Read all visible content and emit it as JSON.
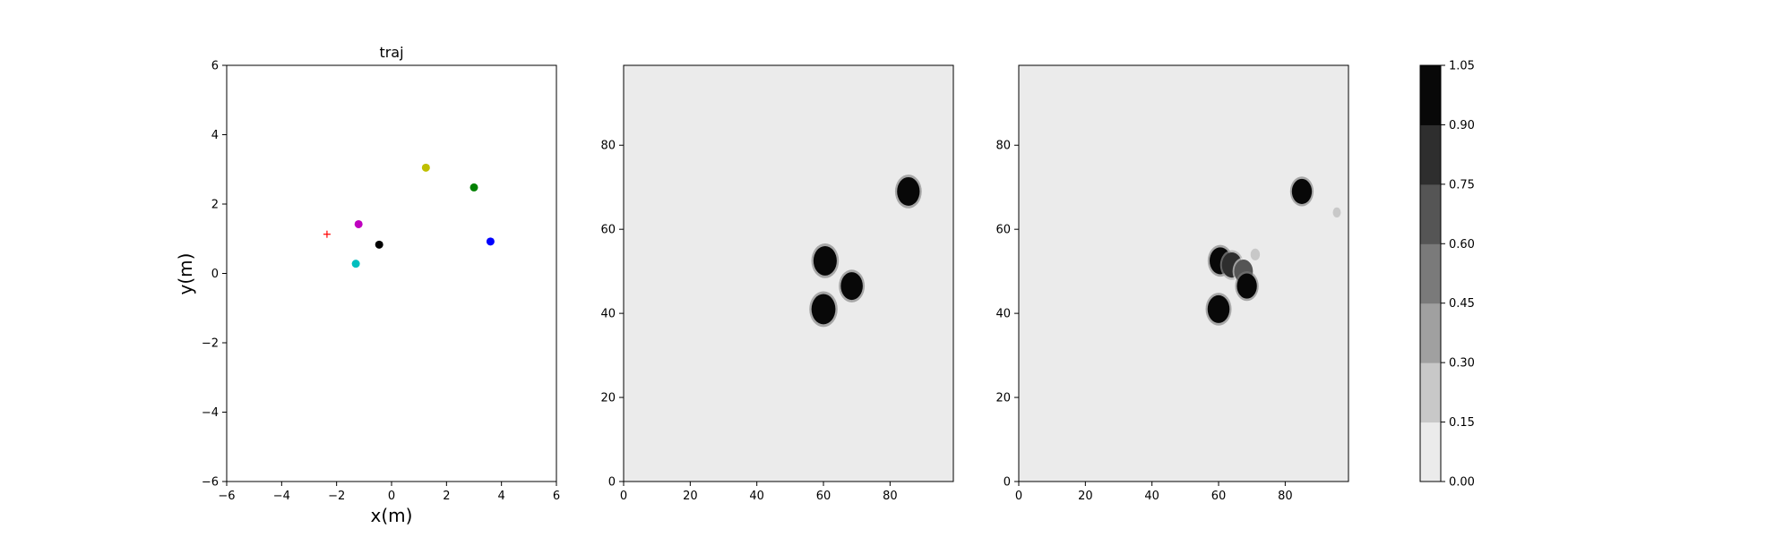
{
  "chart_data": [
    {
      "type": "scatter",
      "title": "traj",
      "xlabel": "x(m)",
      "ylabel": "y(m)",
      "xlim": [
        -6,
        6
      ],
      "ylim": [
        -6,
        6
      ],
      "xticks": [
        -6,
        -4,
        -2,
        0,
        2,
        4,
        6
      ],
      "yticks": [
        -6,
        -4,
        -2,
        0,
        2,
        4,
        6
      ],
      "grid": false,
      "points": [
        {
          "x": 1.25,
          "y": 3.05,
          "color": "#bfbf00",
          "marker": "circle"
        },
        {
          "x": 3.0,
          "y": 2.48,
          "color": "#008000",
          "marker": "circle"
        },
        {
          "x": -1.2,
          "y": 1.42,
          "color": "#bf00bf",
          "marker": "circle"
        },
        {
          "x": -0.45,
          "y": 0.83,
          "color": "#000000",
          "marker": "circle"
        },
        {
          "x": 3.6,
          "y": 0.92,
          "color": "#0000ff",
          "marker": "circle"
        },
        {
          "x": -1.3,
          "y": 0.28,
          "color": "#00bfbf",
          "marker": "circle"
        },
        {
          "x": -2.35,
          "y": 1.13,
          "color": "#ff0000",
          "marker": "plus"
        }
      ]
    },
    {
      "type": "heatmap",
      "title": "",
      "xlim": [
        0,
        99
      ],
      "ylim": [
        0,
        99
      ],
      "xticks": [
        0,
        20,
        40,
        60,
        80
      ],
      "yticks": [
        0,
        20,
        40,
        60,
        80
      ],
      "background_level": 0.0,
      "blobs": [
        {
          "cx": 60.5,
          "cy": 52.5,
          "r": 3.5,
          "level": 1.0
        },
        {
          "cx": 68.5,
          "cy": 46.5,
          "r": 3.3,
          "level": 1.0
        },
        {
          "cx": 60.0,
          "cy": 41.0,
          "r": 3.6,
          "level": 1.0
        },
        {
          "cx": 85.5,
          "cy": 69.0,
          "r": 3.4,
          "level": 1.0
        }
      ]
    },
    {
      "type": "heatmap",
      "title": "",
      "xlim": [
        0,
        99
      ],
      "ylim": [
        0,
        99
      ],
      "xticks": [
        0,
        20,
        40,
        60,
        80
      ],
      "yticks": [
        0,
        20,
        40,
        60,
        80
      ],
      "background_level": 0.0,
      "blobs": [
        {
          "cx": 60.5,
          "cy": 52.5,
          "r": 3.2,
          "level": 1.0
        },
        {
          "cx": 64.0,
          "cy": 51.5,
          "r": 3.0,
          "level": 0.75
        },
        {
          "cx": 67.5,
          "cy": 50.0,
          "r": 2.8,
          "level": 0.6
        },
        {
          "cx": 68.5,
          "cy": 46.5,
          "r": 3.0,
          "level": 1.0
        },
        {
          "cx": 60.0,
          "cy": 41.0,
          "r": 3.3,
          "level": 1.0
        },
        {
          "cx": 85.0,
          "cy": 69.0,
          "r": 3.0,
          "level": 1.0
        },
        {
          "cx": 71.0,
          "cy": 54.0,
          "r": 1.4,
          "level": 0.2
        },
        {
          "cx": 95.5,
          "cy": 64.0,
          "r": 1.2,
          "level": 0.2
        }
      ]
    }
  ],
  "colorbar": {
    "ticks": [
      "0.00",
      "0.15",
      "0.30",
      "0.45",
      "0.60",
      "0.75",
      "0.90",
      "1.05"
    ],
    "colors": [
      "#ebebeb",
      "#c8c8c8",
      "#a0a0a0",
      "#7a7a7a",
      "#555555",
      "#2e2e2e",
      "#080808"
    ]
  }
}
